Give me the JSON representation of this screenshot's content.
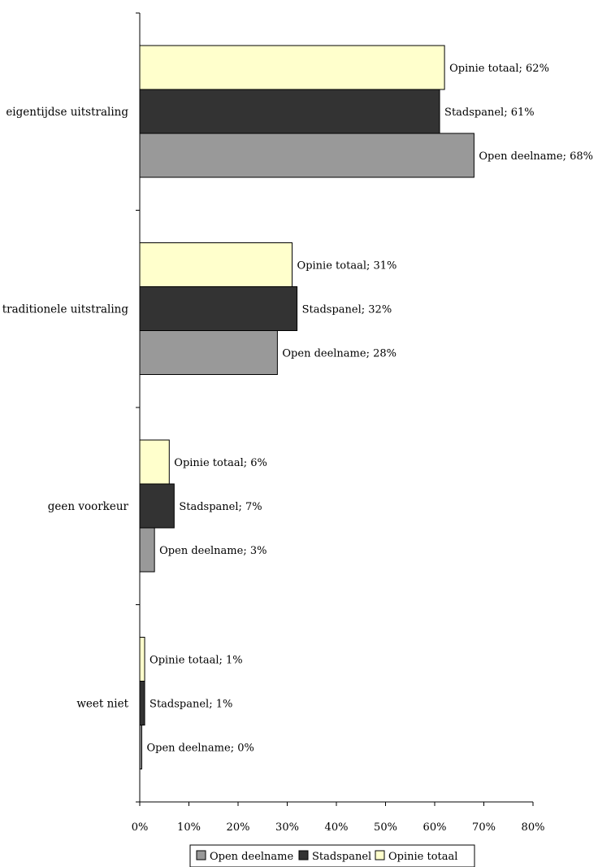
{
  "chart_data": {
    "type": "bar",
    "orientation": "horizontal",
    "categories": [
      "eigentijdse uitstraling",
      "traditionele uitstraling",
      "geen voorkeur",
      "weet niet"
    ],
    "series": [
      {
        "name": "Opinie totaal",
        "values": [
          62,
          31,
          6,
          1
        ],
        "color": "#ffffcc"
      },
      {
        "name": "Stadspanel",
        "values": [
          61,
          32,
          7,
          1
        ],
        "color": "#333333"
      },
      {
        "name": "Open deelname",
        "values": [
          68,
          28,
          3,
          0
        ],
        "color": "#999999"
      }
    ],
    "legend_order": [
      "Open deelname",
      "Stadspanel",
      "Opinie totaal"
    ],
    "data_label_format": "{series}; {value}%",
    "x_tick_labels": [
      "0%",
      "10%",
      "20%",
      "30%",
      "40%",
      "50%",
      "60%",
      "70%",
      "80%"
    ],
    "xlim": [
      0,
      80
    ],
    "grid": false,
    "legend_position": "bottom"
  }
}
